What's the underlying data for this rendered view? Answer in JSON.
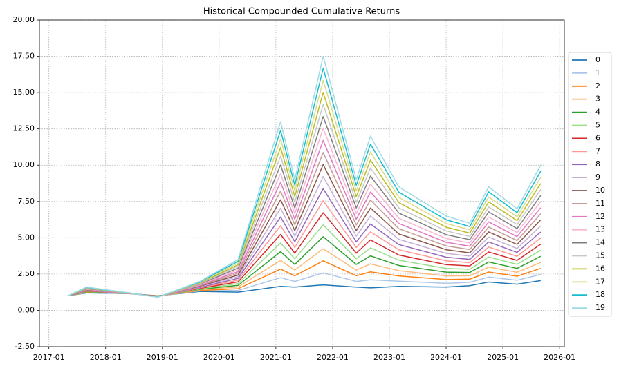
{
  "chart_data": {
    "type": "line",
    "title": "Historical Compounded Cumulative Returns",
    "x": [
      "2017-05",
      "2017-09",
      "2018-06",
      "2018-12",
      "2019-09",
      "2020-05",
      "2021-02",
      "2021-05",
      "2021-11",
      "2022-06",
      "2022-09",
      "2023-03",
      "2024-01",
      "2024-06",
      "2024-10",
      "2025-04",
      "2025-09"
    ],
    "xlim": [
      "2016-11",
      "2026-02"
    ],
    "xticks": [
      "2017-01",
      "2018-01",
      "2019-01",
      "2020-01",
      "2021-01",
      "2022-01",
      "2023-01",
      "2024-01",
      "2025-01",
      "2026-01"
    ],
    "ylim": [
      -2.5,
      20
    ],
    "yticks": [
      {
        "value": -2.5,
        "label": "-2.50"
      },
      {
        "value": 0,
        "label": "0.00"
      },
      {
        "value": 2.5,
        "label": "2.50"
      },
      {
        "value": 5,
        "label": "5.00"
      },
      {
        "value": 7.5,
        "label": "7.50"
      },
      {
        "value": 10,
        "label": "10.00"
      },
      {
        "value": 12.5,
        "label": "12.50"
      },
      {
        "value": 15,
        "label": "15.00"
      },
      {
        "value": 17.5,
        "label": "17.50"
      },
      {
        "value": 20,
        "label": "20.00"
      }
    ],
    "grid": true,
    "legend": "right",
    "series": [
      {
        "name": "0",
        "color": "#1f77b4",
        "values": [
          1.0,
          1.2,
          1.15,
          1.0,
          1.3,
          1.25,
          1.65,
          1.6,
          1.75,
          1.6,
          1.55,
          1.65,
          1.6,
          1.7,
          1.95,
          1.8,
          2.05
        ]
      },
      {
        "name": "1",
        "color": "#aec7e8",
        "values": [
          1.0,
          1.22,
          1.15,
          0.99,
          1.34,
          1.37,
          2.25,
          1.99,
          2.58,
          1.99,
          2.1,
          2.01,
          1.86,
          1.93,
          2.29,
          2.07,
          2.47
        ]
      },
      {
        "name": "2",
        "color": "#ff7f0e",
        "values": [
          1.0,
          1.24,
          1.16,
          0.99,
          1.37,
          1.49,
          2.84,
          2.38,
          3.41,
          2.38,
          2.65,
          2.37,
          2.12,
          2.15,
          2.64,
          2.35,
          2.89
        ]
      },
      {
        "name": "3",
        "color": "#ffbb78",
        "values": [
          1.0,
          1.26,
          1.16,
          0.98,
          1.41,
          1.61,
          3.44,
          2.77,
          4.24,
          2.77,
          3.2,
          2.73,
          2.37,
          2.38,
          2.98,
          2.62,
          3.3
        ]
      },
      {
        "name": "4",
        "color": "#2ca02c",
        "values": [
          1.0,
          1.28,
          1.16,
          0.98,
          1.45,
          1.72,
          4.04,
          3.16,
          5.07,
          3.16,
          3.75,
          3.09,
          2.63,
          2.61,
          3.33,
          2.89,
          3.72
        ]
      },
      {
        "name": "5",
        "color": "#98df8a",
        "values": [
          1.0,
          1.31,
          1.16,
          0.97,
          1.48,
          1.84,
          4.64,
          3.55,
          5.89,
          3.55,
          4.3,
          3.45,
          2.89,
          2.83,
          3.67,
          3.17,
          4.14
        ]
      },
      {
        "name": "6",
        "color": "#d62728",
        "values": [
          1.0,
          1.33,
          1.17,
          0.97,
          1.52,
          1.96,
          5.23,
          3.94,
          6.72,
          3.94,
          4.85,
          3.81,
          3.15,
          3.06,
          4.02,
          3.44,
          4.56
        ]
      },
      {
        "name": "7",
        "color": "#ff9896",
        "values": [
          1.0,
          1.35,
          1.17,
          0.96,
          1.56,
          2.08,
          5.83,
          4.33,
          7.55,
          4.33,
          5.4,
          4.17,
          3.41,
          3.28,
          4.36,
          3.72,
          4.98
        ]
      },
      {
        "name": "8",
        "color": "#9467bd",
        "values": [
          1.0,
          1.37,
          1.17,
          0.96,
          1.59,
          2.2,
          6.43,
          4.72,
          8.38,
          4.72,
          5.95,
          4.53,
          3.66,
          3.51,
          4.71,
          3.99,
          5.4
        ]
      },
      {
        "name": "9",
        "color": "#c5b0d5",
        "values": [
          1.0,
          1.39,
          1.17,
          0.95,
          1.63,
          2.32,
          7.03,
          5.11,
          9.21,
          5.11,
          6.5,
          4.89,
          3.92,
          3.74,
          5.05,
          4.26,
          5.82
        ]
      },
      {
        "name": "10",
        "color": "#8c564b",
        "values": [
          1.0,
          1.41,
          1.18,
          0.95,
          1.67,
          2.43,
          7.62,
          5.49,
          10.04,
          5.49,
          7.05,
          5.26,
          4.18,
          3.96,
          5.4,
          4.54,
          6.23
        ]
      },
      {
        "name": "11",
        "color": "#c49c94",
        "values": [
          1.0,
          1.43,
          1.18,
          0.94,
          1.71,
          2.55,
          8.22,
          5.88,
          10.87,
          5.88,
          7.6,
          5.62,
          4.44,
          4.19,
          5.74,
          4.81,
          6.65
        ]
      },
      {
        "name": "12",
        "color": "#e377c2",
        "values": [
          1.0,
          1.45,
          1.18,
          0.94,
          1.74,
          2.67,
          8.82,
          6.27,
          11.7,
          6.27,
          8.15,
          5.98,
          4.69,
          4.42,
          6.09,
          5.08,
          7.07
        ]
      },
      {
        "name": "13",
        "color": "#f7b6d2",
        "values": [
          1.0,
          1.47,
          1.18,
          0.93,
          1.78,
          2.79,
          9.42,
          6.66,
          12.53,
          6.66,
          8.7,
          6.34,
          4.95,
          4.64,
          6.43,
          5.36,
          7.49
        ]
      },
      {
        "name": "14",
        "color": "#7f7f7f",
        "values": [
          1.0,
          1.49,
          1.19,
          0.93,
          1.82,
          2.91,
          10.01,
          7.05,
          13.35,
          7.05,
          9.25,
          6.7,
          5.21,
          4.87,
          6.78,
          5.63,
          7.91
        ]
      },
      {
        "name": "15",
        "color": "#c7c7c7",
        "values": [
          1.0,
          1.52,
          1.19,
          0.92,
          1.85,
          3.03,
          10.61,
          7.44,
          14.18,
          7.44,
          9.8,
          7.06,
          5.47,
          5.09,
          7.12,
          5.91,
          8.32
        ]
      },
      {
        "name": "16",
        "color": "#bcbd22",
        "values": [
          1.0,
          1.54,
          1.19,
          0.92,
          1.89,
          3.14,
          11.21,
          7.83,
          15.01,
          7.83,
          10.35,
          7.42,
          5.73,
          5.32,
          7.47,
          6.18,
          8.74
        ]
      },
      {
        "name": "17",
        "color": "#dbdb8d",
        "values": [
          1.0,
          1.56,
          1.19,
          0.91,
          1.93,
          3.26,
          11.81,
          8.22,
          15.84,
          8.22,
          10.9,
          7.78,
          5.98,
          5.55,
          7.81,
          6.45,
          9.16
        ]
      },
      {
        "name": "18",
        "color": "#17becf",
        "values": [
          1.0,
          1.58,
          1.2,
          0.91,
          1.96,
          3.38,
          12.4,
          8.61,
          16.67,
          8.61,
          11.45,
          8.14,
          6.24,
          5.77,
          8.16,
          6.73,
          9.58
        ]
      },
      {
        "name": "19",
        "color": "#9edae5",
        "values": [
          1.0,
          1.6,
          1.2,
          0.9,
          2.0,
          3.5,
          13.0,
          9.0,
          17.5,
          9.0,
          12.0,
          8.5,
          6.5,
          6.0,
          8.5,
          7.0,
          10.0
        ]
      }
    ]
  }
}
